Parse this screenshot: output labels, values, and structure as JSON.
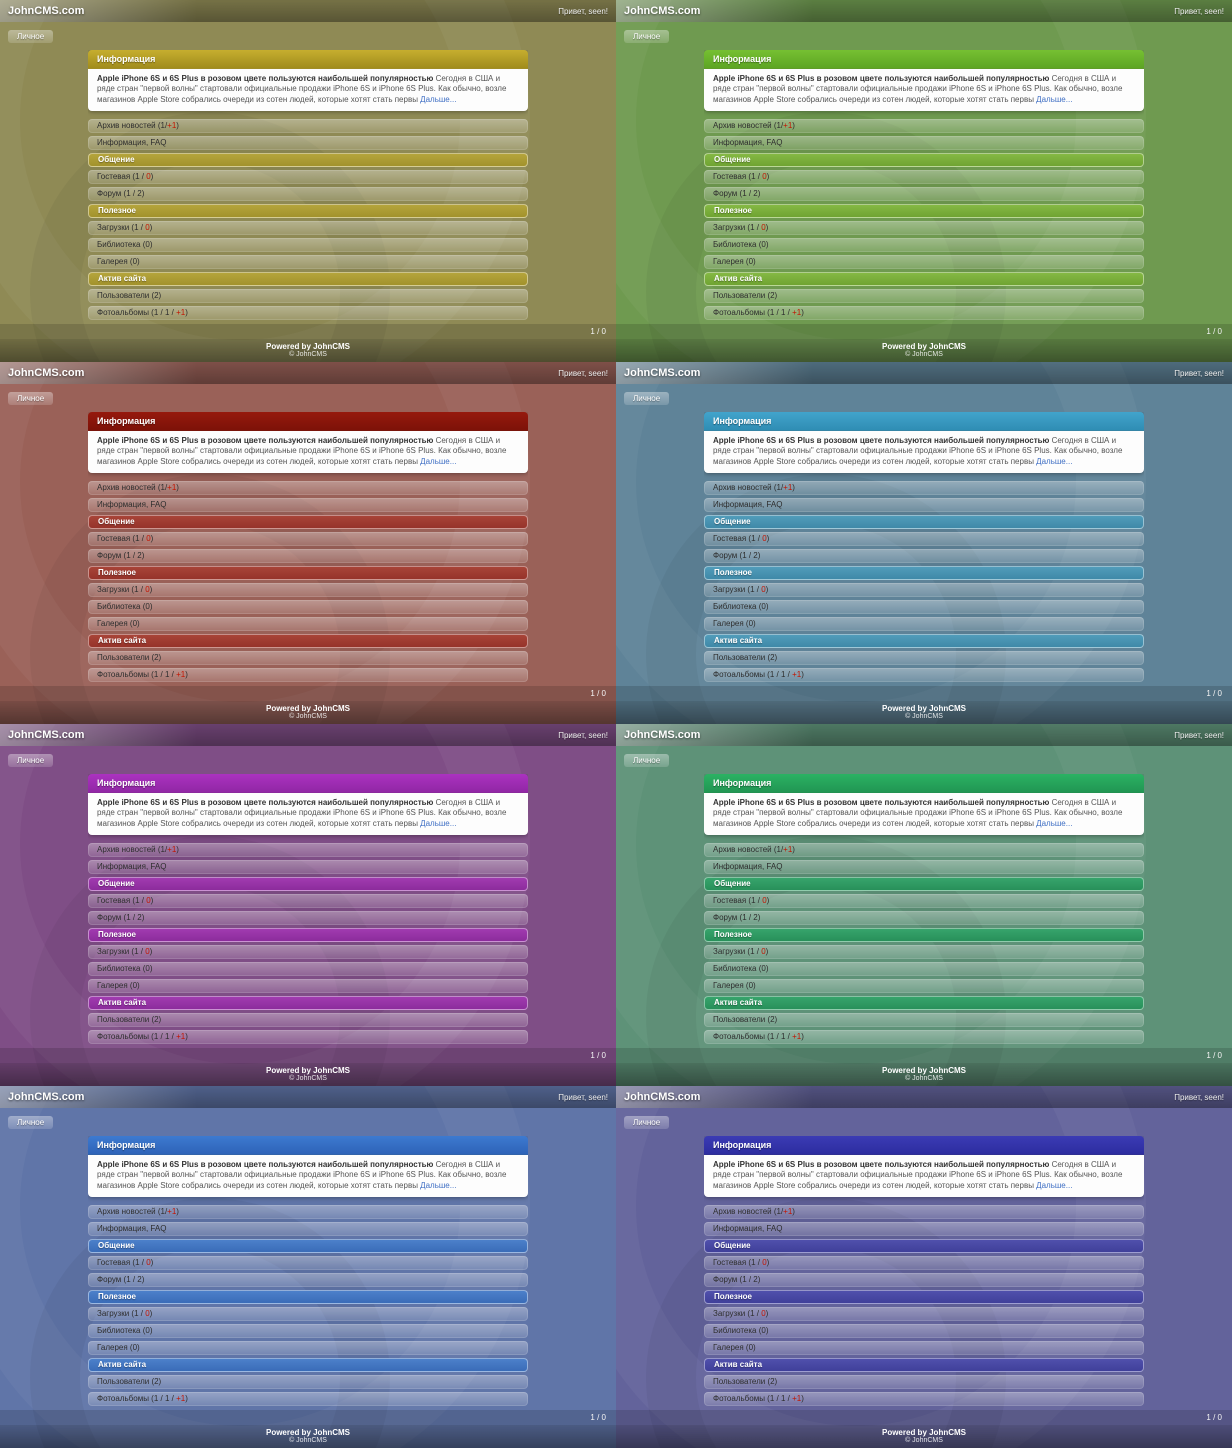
{
  "site": {
    "title": "JohnCMS.com",
    "greeting": "Привет, seen!",
    "personal_button": "Личное"
  },
  "card": {
    "header": "Информация",
    "news_title": "Apple iPhone 6S и 6S Plus в розовом цвете пользуются наибольшей популярностью",
    "news_body": " Сегодня в США и ряде стран \"первой волны\" стартовали официальные продажи iPhone 6S и iPhone 6S Plus. Как обычно, возле магазинов Apple Store собрались очереди из сотен людей, которые хотят стать первы ",
    "news_more": "Дальше..."
  },
  "menu": [
    {
      "type": "item",
      "text": "Архив новостей (1/",
      "red": "+1",
      "end": ")"
    },
    {
      "type": "item",
      "text": "Информация, FAQ"
    },
    {
      "type": "section",
      "text": "Общение"
    },
    {
      "type": "item",
      "text": "Гостевая (1 / ",
      "red": "0",
      "end": ")"
    },
    {
      "type": "item",
      "text": "Форум (1 / 2)"
    },
    {
      "type": "section",
      "text": "Полезное"
    },
    {
      "type": "item",
      "text": "Загрузки (1 / ",
      "red": "0",
      "end": ")"
    },
    {
      "type": "item",
      "text": "Библиотека (0)"
    },
    {
      "type": "item",
      "text": "Галерея (0)"
    },
    {
      "type": "section",
      "text": "Актив сайта"
    },
    {
      "type": "item",
      "text": "Пользователи (2)"
    },
    {
      "type": "item",
      "text": "Фотоальбомы (1 / 1 / ",
      "red": "+1",
      "end": ")"
    }
  ],
  "pager": {
    "count": "1 / 0"
  },
  "footer": {
    "powered": "Powered by JohnCMS",
    "copyright": "© JohnCMS"
  },
  "accents": {
    "counter_red": "#c41400",
    "link_blue": "#3f6fc4"
  },
  "themes": [
    {
      "name": "olive",
      "vars": {
        "bg": "#8f8a55",
        "hdr1": "#c6ae2f",
        "hdr2": "#a18c1c",
        "section": "#b5a53c",
        "section2": "#a2922c"
      }
    },
    {
      "name": "green",
      "vars": {
        "bg": "#6f9a50",
        "hdr1": "#76c032",
        "hdr2": "#5da523",
        "section": "#85b944",
        "section2": "#6fa332"
      }
    },
    {
      "name": "maroon",
      "vars": {
        "bg": "#9a6158",
        "hdr1": "#96190d",
        "hdr2": "#7d1208",
        "section": "#a84438",
        "section2": "#96332a"
      }
    },
    {
      "name": "steel-blue",
      "vars": {
        "bg": "#5f8398",
        "hdr1": "#42a4cc",
        "hdr2": "#2f8db4",
        "section": "#519cba",
        "section2": "#3f89a8"
      }
    },
    {
      "name": "purple",
      "vars": {
        "bg": "#7f4e86",
        "hdr1": "#ab32c0",
        "hdr2": "#9127a5",
        "section": "#a13bb0",
        "section2": "#8c2c9c"
      }
    },
    {
      "name": "emerald",
      "vars": {
        "bg": "#5e9278",
        "hdr1": "#2bb263",
        "hdr2": "#219653",
        "section": "#37a46c",
        "section2": "#28905a"
      }
    },
    {
      "name": "blue",
      "vars": {
        "bg": "#6075a8",
        "hdr1": "#3d7ad0",
        "hdr2": "#2e63b8",
        "section": "#4c80ca",
        "section2": "#3a6cb8"
      }
    },
    {
      "name": "indigo",
      "vars": {
        "bg": "#63639b",
        "hdr1": "#3b3bb4",
        "hdr2": "#2d2da0",
        "section": "#5050ac",
        "section2": "#40409a"
      }
    }
  ]
}
